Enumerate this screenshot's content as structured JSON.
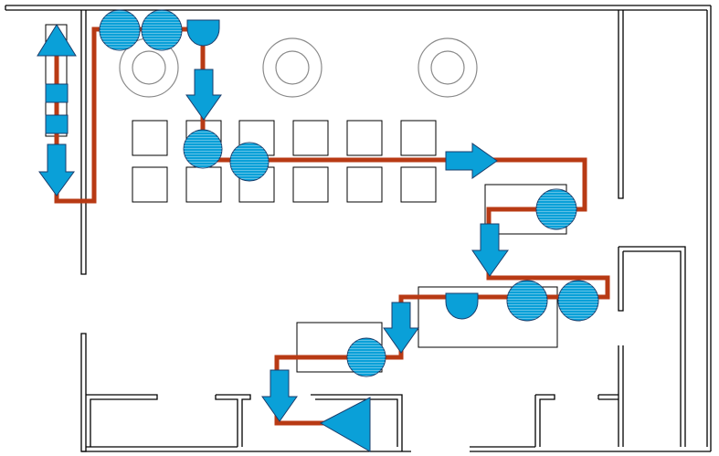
{
  "diagram": {
    "title": "",
    "type": "facility-layout-process-flow",
    "colors": {
      "background": "#ffffff",
      "wall": "#000000",
      "path": "#b83a14",
      "symbol_fill": "#0aa0d8",
      "symbol_stroke": "#1b3d6b",
      "furniture_stroke": "#000000",
      "round_table_stroke": "#8a8a8a"
    },
    "legend_symbols": [
      "operation-circle",
      "transport-arrow",
      "delay-d",
      "storage-triangle",
      "inspection-square"
    ],
    "flow_steps": [
      "storage-triangle",
      "inspection-square",
      "inspection-square",
      "transport-arrow",
      "operation-circle",
      "operation-circle",
      "delay-d",
      "transport-arrow",
      "operation-circle",
      "operation-circle",
      "transport-arrow",
      "operation-circle",
      "transport-arrow",
      "operation-circle",
      "operation-circle",
      "delay-d",
      "transport-arrow",
      "operation-circle",
      "transport-arrow",
      "storage-triangle"
    ]
  }
}
